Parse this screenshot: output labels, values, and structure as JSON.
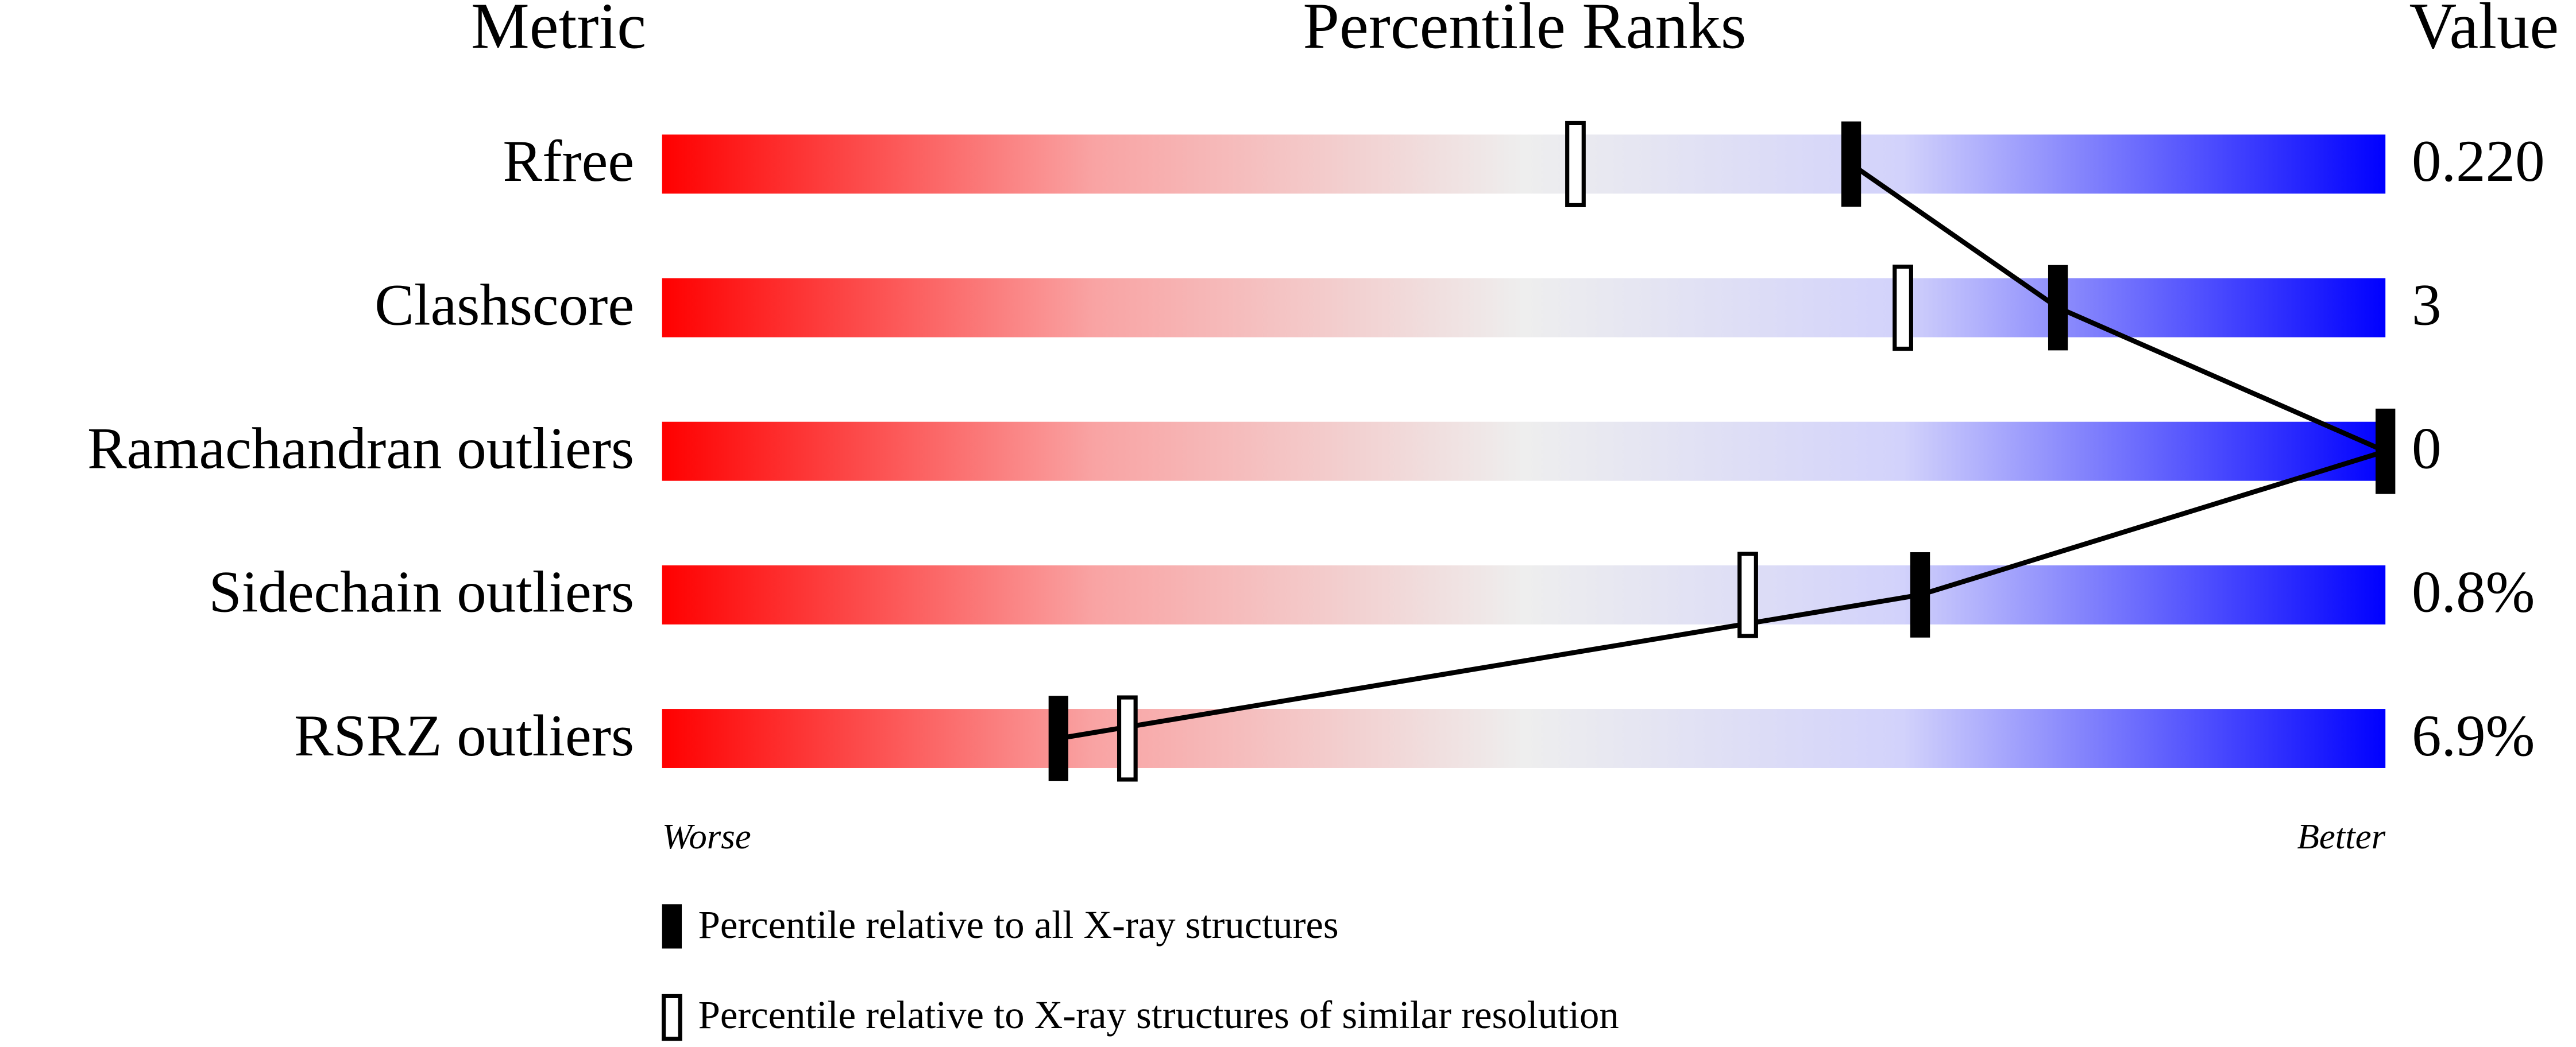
{
  "chart_data": {
    "type": "percentile",
    "headers": [
      "Metric",
      "Percentile Ranks",
      "Value"
    ],
    "categories": [
      "Rfree",
      "Clashscore",
      "Ramachandran outliers",
      "Sidechain outliers",
      "RSRZ outliers"
    ],
    "values": [
      0.22,
      3,
      0,
      0.8,
      6.9
    ],
    "value_labels": [
      "0.220",
      "3",
      "0",
      "0.8%",
      "6.9%"
    ],
    "series": [
      {
        "name": "Percentile relative to all X-ray structures",
        "color": "#000000",
        "values": [
          69,
          81,
          100,
          73,
          23
        ]
      },
      {
        "name": "Percentile relative to X-ray structures of similar resolution",
        "color": "#000000",
        "values": [
          53,
          72,
          null,
          63,
          27
        ]
      }
    ],
    "xlim": [
      0,
      100
    ],
    "axis_labels": [
      "Worse",
      "Better"
    ]
  }
}
